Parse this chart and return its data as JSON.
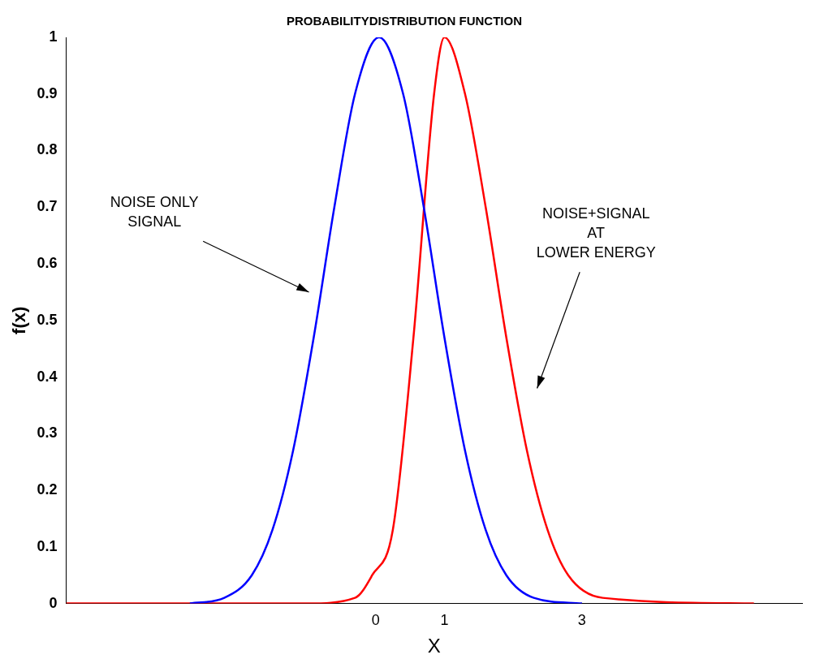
{
  "chart_data": {
    "type": "line",
    "title": "PROBABILITYDISTRIBUTION FUNCTION",
    "xlabel": "X",
    "ylabel": "f(x)",
    "xlim": [
      -4.5,
      6.2
    ],
    "xticks": [
      0,
      1,
      3
    ],
    "ylim": [
      0,
      1
    ],
    "yticks": [
      0,
      0.1,
      0.2,
      0.3,
      0.4,
      0.5,
      0.6,
      0.7,
      0.8,
      0.9,
      1
    ],
    "grid": false,
    "legend": false,
    "marker": "none",
    "line_style": "solid",
    "series": [
      {
        "color": "#0000ff",
        "x": [
          -2.7,
          -2.2,
          -1.8,
          -1.5,
          -1.2,
          -0.9,
          -0.6,
          -0.3,
          0.05,
          0.4,
          0.7,
          1.0,
          1.3,
          1.6,
          1.9,
          2.3,
          3.0
        ],
        "values": [
          0,
          0.01,
          0.05,
          0.13,
          0.27,
          0.47,
          0.7,
          0.9,
          1,
          0.9,
          0.7,
          0.47,
          0.27,
          0.13,
          0.05,
          0.01,
          0
        ]
      },
      {
        "color": "#ff0000",
        "x": [
          -4.5,
          -1.0,
          -0.3,
          -0.05,
          0.25,
          0.55,
          0.85,
          1.0,
          1.3,
          1.6,
          1.9,
          2.2,
          2.5,
          2.8,
          3.3,
          5.5
        ],
        "values": [
          0,
          0,
          0.01,
          0.05,
          0.13,
          0.47,
          0.9,
          1,
          0.9,
          0.7,
          0.47,
          0.27,
          0.13,
          0.05,
          0.01,
          0
        ]
      }
    ],
    "annotations": [
      "NOISE ONLY\nSIGNAL",
      "NOISE+SIGNAL\nAT\nLOWER ENERGY"
    ]
  }
}
